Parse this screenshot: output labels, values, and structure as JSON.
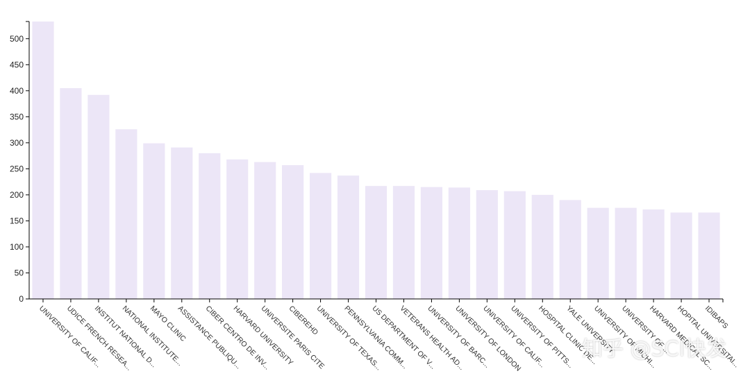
{
  "chart_data": {
    "type": "bar",
    "categories": [
      "UNIVERSITY OF CALIF...",
      "UDICE FRENCH RESEA...",
      "INSTITUT NATIONAL D...",
      "NATIONAL INSTITUTE...",
      "MAYO CLINIC",
      "ASSISTANCE PUBLIQU...",
      "CIBER CENTRO DE INV...",
      "HARVARD UNIVERSITY",
      "UNIVERSITE PARIS CITE",
      "CIBEREHD",
      "UNIVERSITY OF TEXAS...",
      "PENNSYLVANIA COMM...",
      "US DEPARTMENT OF V...",
      "VETERANS HEALTH AD...",
      "UNIVERSITY OF BARC...",
      "UNIVERSITY OF LONDON",
      "UNIVERSITY OF CALIF...",
      "UNIVERSITY OF PITTS...",
      "HOSPITAL CLINIC DE...",
      "YALE UNIVERSITY",
      "UNIVERSITY OF MICHI...",
      "UNIVERSITY OF ...",
      "HARVARD MEDICAL SC...",
      "HOPITAL UNIVERSITAI...",
      "IDIBAPS"
    ],
    "values": [
      533,
      405,
      392,
      326,
      299,
      291,
      280,
      268,
      263,
      257,
      242,
      237,
      217,
      217,
      215,
      214,
      209,
      207,
      200,
      190,
      175,
      175,
      172,
      166,
      166
    ],
    "ylim": [
      0,
      533
    ],
    "yticks": [
      0,
      50,
      100,
      150,
      200,
      250,
      300,
      350,
      400,
      450,
      500
    ],
    "bar_color": "#ece6f7",
    "grid": false
  },
  "watermark": {
    "text": "知乎 @SCI快发"
  }
}
